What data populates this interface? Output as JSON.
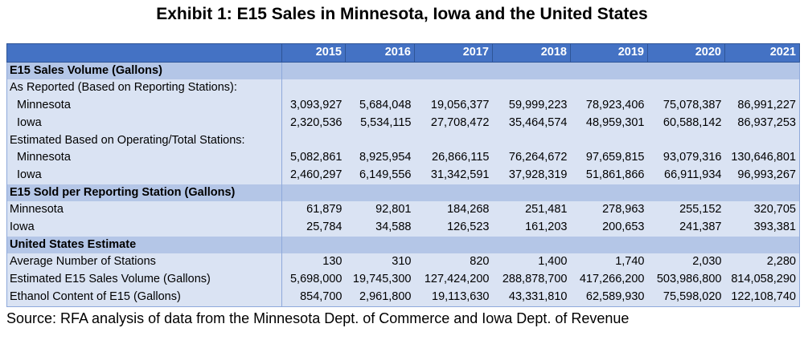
{
  "title": "Exhibit 1: E15 Sales in Minnesota, Iowa and the United States",
  "table": {
    "years": [
      "2015",
      "2016",
      "2017",
      "2018",
      "2019",
      "2020",
      "2021"
    ],
    "rows": [
      {
        "type": "section",
        "label": "E15 Sales Volume (Gallons)",
        "indent": false,
        "values": []
      },
      {
        "type": "row",
        "label": "As Reported (Based on Reporting Stations):",
        "indent": false,
        "values": []
      },
      {
        "type": "row",
        "label": "Minnesota",
        "indent": true,
        "values": [
          "3,093,927",
          "5,684,048",
          "19,056,377",
          "59,999,223",
          "78,923,406",
          "75,078,387",
          "86,991,227"
        ]
      },
      {
        "type": "row",
        "label": "Iowa",
        "indent": true,
        "values": [
          "2,320,536",
          "5,534,115",
          "27,708,472",
          "35,464,574",
          "48,959,301",
          "60,588,142",
          "86,937,253"
        ]
      },
      {
        "type": "row",
        "label": "Estimated Based on Operating/Total Stations:",
        "indent": false,
        "values": []
      },
      {
        "type": "row",
        "label": "Minnesota",
        "indent": true,
        "values": [
          "5,082,861",
          "8,925,954",
          "26,866,115",
          "76,264,672",
          "97,659,815",
          "93,079,316",
          "130,646,801"
        ]
      },
      {
        "type": "row",
        "label": "Iowa",
        "indent": true,
        "values": [
          "2,460,297",
          "6,149,556",
          "31,342,591",
          "37,928,319",
          "51,861,866",
          "66,911,934",
          "96,993,267"
        ]
      },
      {
        "type": "section",
        "label": "E15 Sold per Reporting Station (Gallons)",
        "indent": false,
        "values": []
      },
      {
        "type": "row",
        "label": "Minnesota",
        "indent": false,
        "values": [
          "61,879",
          "92,801",
          "184,268",
          "251,481",
          "278,963",
          "255,152",
          "320,705"
        ]
      },
      {
        "type": "row",
        "label": "Iowa",
        "indent": false,
        "values": [
          "25,784",
          "34,588",
          "126,523",
          "161,203",
          "200,653",
          "241,387",
          "393,381"
        ]
      },
      {
        "type": "section",
        "label": "United States Estimate",
        "indent": false,
        "values": []
      },
      {
        "type": "row",
        "label": "Average Number of Stations",
        "indent": false,
        "values": [
          "130",
          "310",
          "820",
          "1,400",
          "1,740",
          "2,030",
          "2,280"
        ]
      },
      {
        "type": "row",
        "label": "Estimated E15 Sales Volume (Gallons)",
        "indent": false,
        "values": [
          "5,698,000",
          "19,745,300",
          "127,424,200",
          "288,878,700",
          "417,266,200",
          "503,986,800",
          "814,058,290"
        ]
      },
      {
        "type": "row",
        "label": "Ethanol Content of E15 (Gallons)",
        "indent": false,
        "values": [
          "854,700",
          "2,961,800",
          "19,113,630",
          "43,331,810",
          "62,589,930",
          "75,598,020",
          "122,108,740"
        ]
      }
    ]
  },
  "source": "Source: RFA analysis of data from the Minnesota Dept. of Commerce and Iowa Dept. of Revenue",
  "colors": {
    "header": "#4472c4",
    "section": "#b4c6e7",
    "row": "#dae3f3"
  }
}
